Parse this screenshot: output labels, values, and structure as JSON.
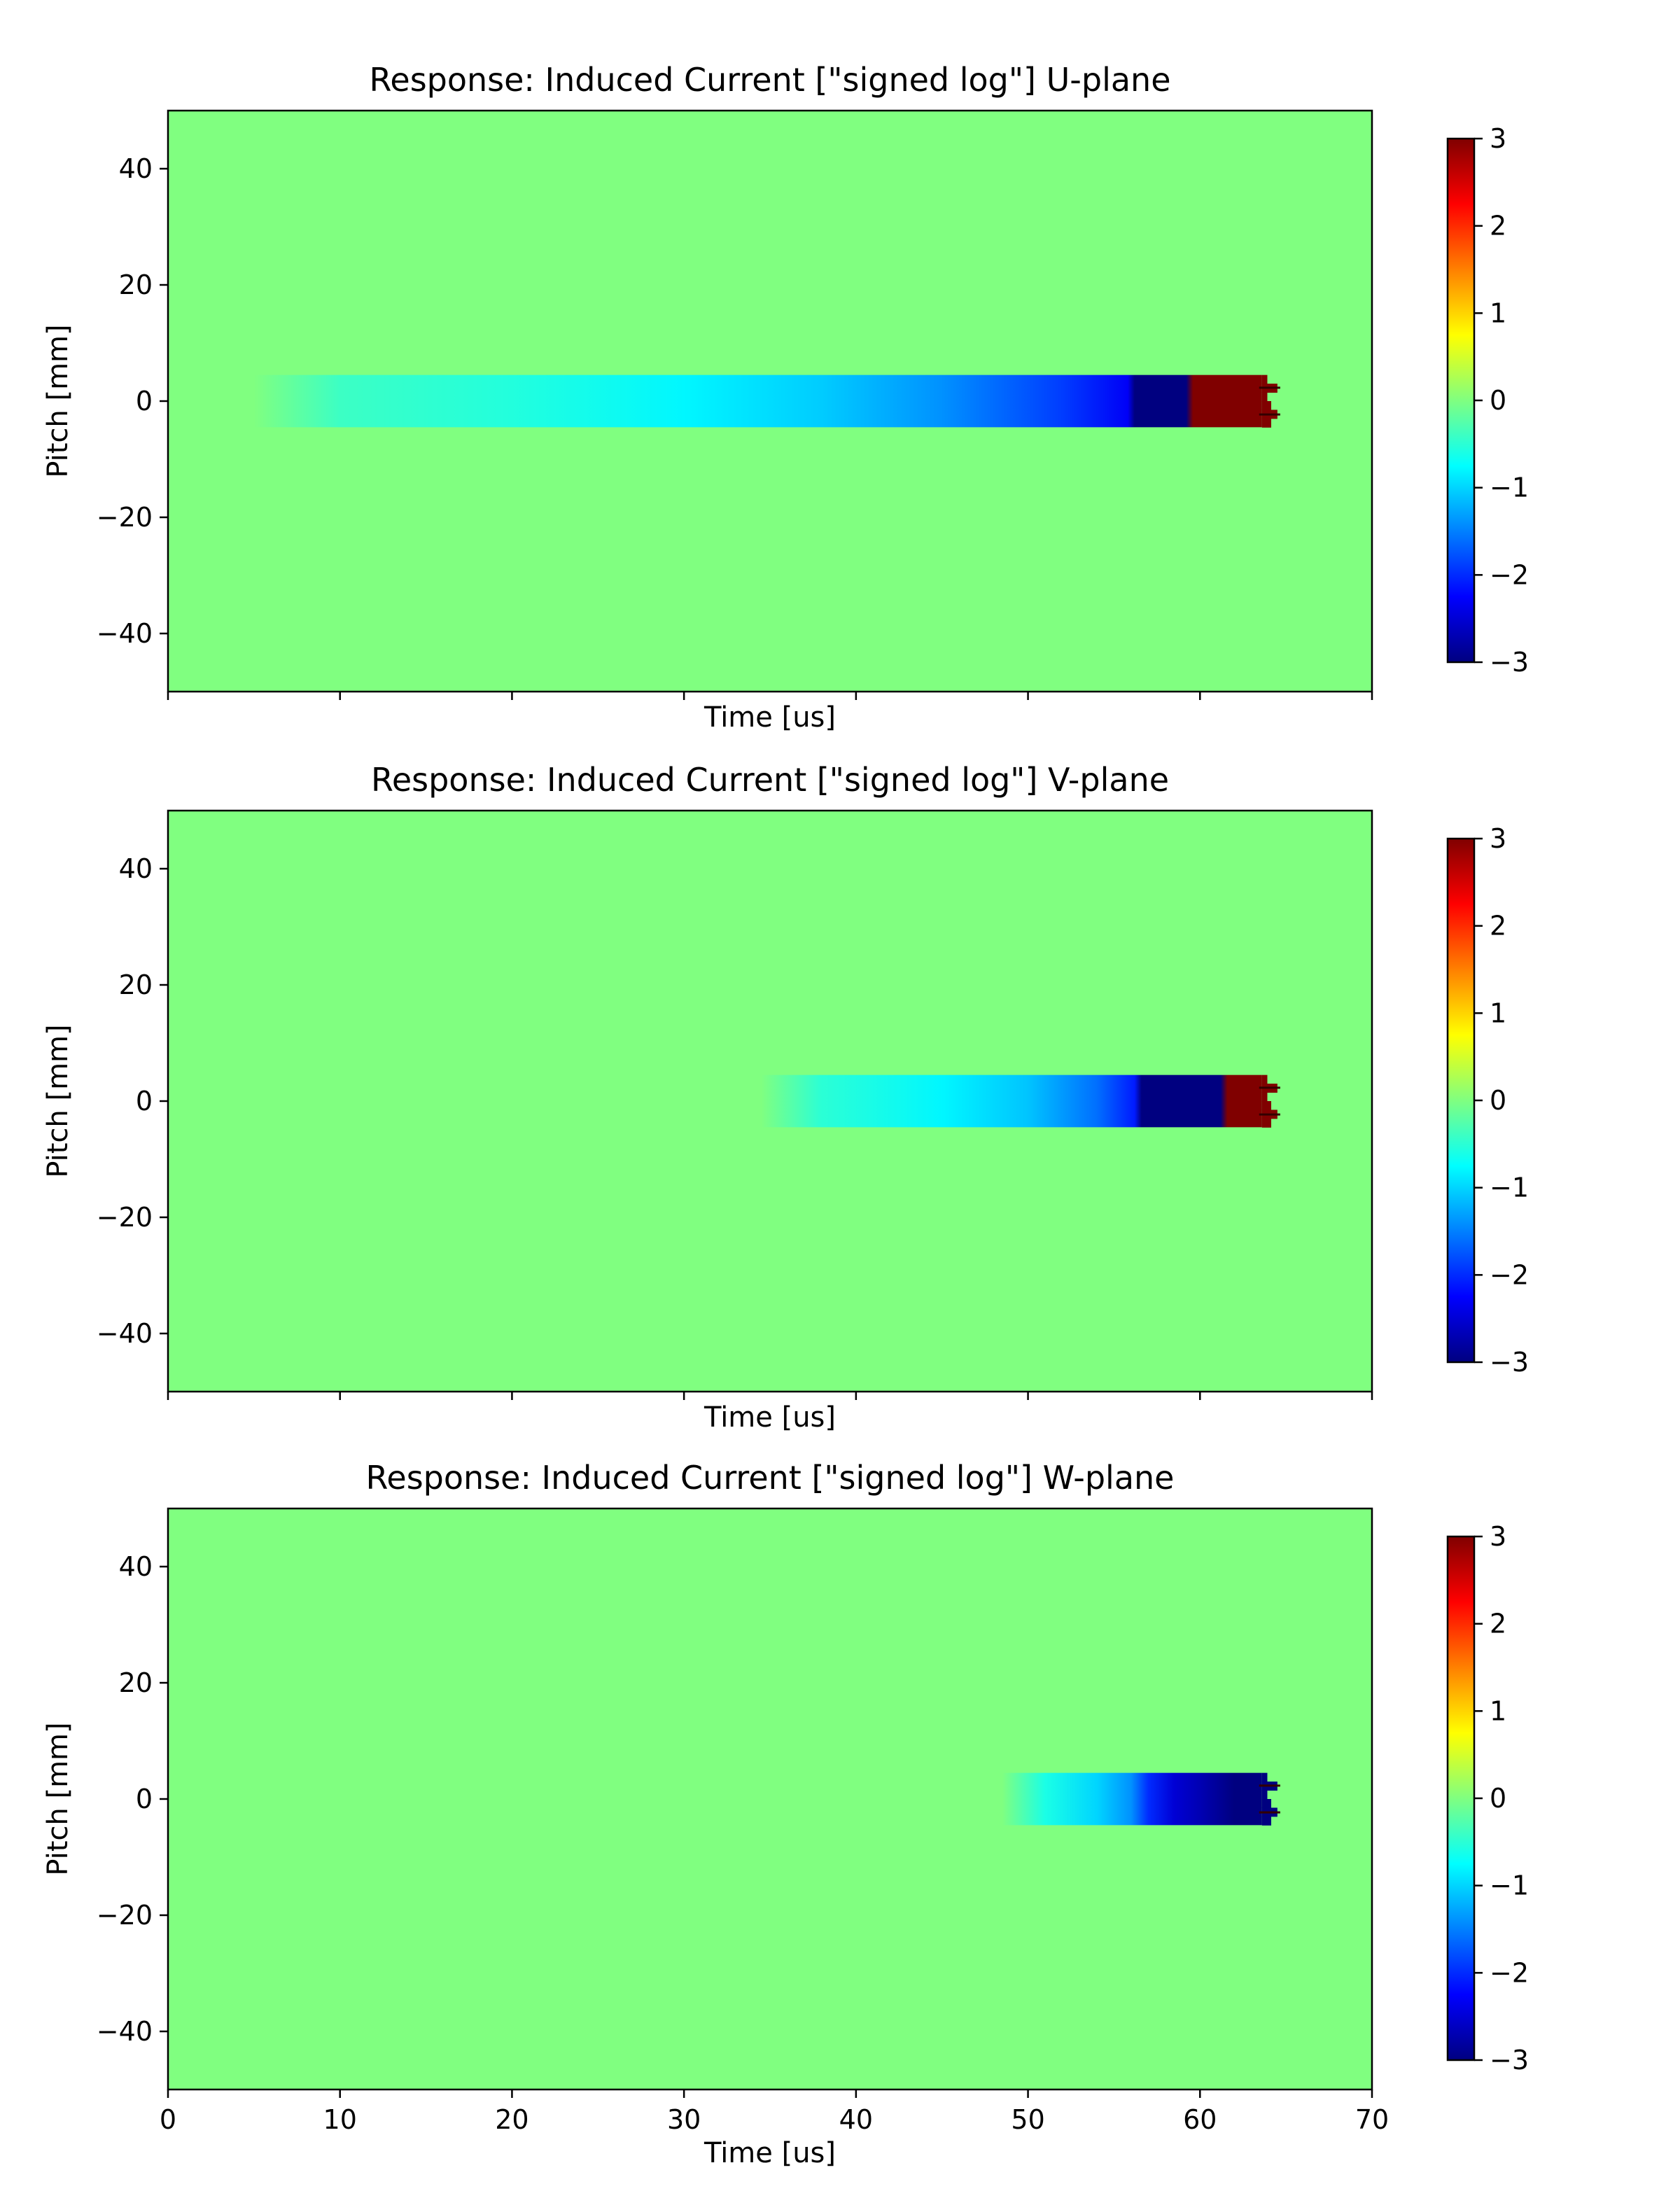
{
  "colors": {
    "background_zero": "#80ff80",
    "colormap": "jet",
    "colormap_stops": [
      "#000080",
      "#0000ff",
      "#0080ff",
      "#00ffff",
      "#80ff80",
      "#ffff00",
      "#ff8000",
      "#ff0000",
      "#800000"
    ]
  },
  "chart_data": [
    {
      "type": "heatmap",
      "title": "Response: Induced Current [\"signed log\"] U-plane",
      "xlabel": "Time [us]",
      "ylabel": "Pitch [mm]",
      "xlim": [
        0,
        70
      ],
      "ylim": [
        -50,
        50
      ],
      "x_ticks": [
        0,
        10,
        20,
        30,
        40,
        50,
        60,
        70
      ],
      "x_tick_labels_shown": false,
      "y_ticks": [
        -40,
        -20,
        0,
        20,
        40
      ],
      "y_tick_labels": [
        "−40",
        "−20",
        "0",
        "20",
        "40"
      ],
      "colorbar": {
        "range": [
          -3,
          3
        ],
        "ticks": [
          -3,
          -2,
          -1,
          0,
          1,
          2,
          3
        ],
        "tick_labels": [
          "−3",
          "−2",
          "−1",
          "0",
          "1",
          "2",
          "3"
        ]
      },
      "band": {
        "pitch_range": [
          -4.5,
          4.5
        ],
        "signal_start_time": 5,
        "deep_negative_start": 56,
        "positive_start": 59.5,
        "end_time": 64.5
      },
      "profile": [
        {
          "t": 5,
          "v": 0
        },
        {
          "t": 10,
          "v": -0.4
        },
        {
          "t": 20,
          "v": -0.55
        },
        {
          "t": 30,
          "v": -0.8
        },
        {
          "t": 38,
          "v": -1.05
        },
        {
          "t": 45,
          "v": -1.4
        },
        {
          "t": 52,
          "v": -1.9
        },
        {
          "t": 55.8,
          "v": -2.3
        },
        {
          "t": 56.2,
          "v": -3
        },
        {
          "t": 59.2,
          "v": -3
        },
        {
          "t": 59.6,
          "v": 3
        },
        {
          "t": 63.6,
          "v": 3
        }
      ]
    },
    {
      "type": "heatmap",
      "title": "Response: Induced Current [\"signed log\"] V-plane",
      "xlabel": "Time [us]",
      "ylabel": "Pitch [mm]",
      "xlim": [
        0,
        70
      ],
      "ylim": [
        -50,
        50
      ],
      "x_ticks": [
        0,
        10,
        20,
        30,
        40,
        50,
        60,
        70
      ],
      "x_tick_labels_shown": false,
      "y_ticks": [
        -40,
        -20,
        0,
        20,
        40
      ],
      "y_tick_labels": [
        "−40",
        "−20",
        "0",
        "20",
        "40"
      ],
      "colorbar": {
        "range": [
          -3,
          3
        ],
        "ticks": [
          -3,
          -2,
          -1,
          0,
          1,
          2,
          3
        ],
        "tick_labels": [
          "−3",
          "−2",
          "−1",
          "0",
          "1",
          "2",
          "3"
        ]
      },
      "band": {
        "pitch_range": [
          -4.5,
          4.5
        ],
        "signal_start_time": 34.5,
        "deep_negative_start": 56.5,
        "positive_start": 61.5,
        "end_time": 64.5
      },
      "profile": [
        {
          "t": 34.5,
          "v": 0
        },
        {
          "t": 38,
          "v": -0.5
        },
        {
          "t": 45,
          "v": -0.8
        },
        {
          "t": 50,
          "v": -1.1
        },
        {
          "t": 54,
          "v": -1.6
        },
        {
          "t": 56.2,
          "v": -2.1
        },
        {
          "t": 56.6,
          "v": -3
        },
        {
          "t": 61.2,
          "v": -3
        },
        {
          "t": 61.6,
          "v": 3
        },
        {
          "t": 63.6,
          "v": 3
        }
      ]
    },
    {
      "type": "heatmap",
      "title": "Response: Induced Current [\"signed log\"] W-plane",
      "xlabel": "Time [us]",
      "ylabel": "Pitch [mm]",
      "xlim": [
        0,
        70
      ],
      "ylim": [
        -50,
        50
      ],
      "x_ticks": [
        0,
        10,
        20,
        30,
        40,
        50,
        60,
        70
      ],
      "x_tick_labels": [
        "0",
        "10",
        "20",
        "30",
        "40",
        "50",
        "60",
        "70"
      ],
      "x_tick_labels_shown": true,
      "y_ticks": [
        -40,
        -20,
        0,
        20,
        40
      ],
      "y_tick_labels": [
        "−40",
        "−20",
        "0",
        "20",
        "40"
      ],
      "colorbar": {
        "range": [
          -3,
          3
        ],
        "ticks": [
          -3,
          -2,
          -1,
          0,
          1,
          2,
          3
        ],
        "tick_labels": [
          "−3",
          "−2",
          "−1",
          "0",
          "1",
          "2",
          "3"
        ]
      },
      "band": {
        "pitch_range": [
          -4.5,
          4.5
        ],
        "signal_start_time": 48.5,
        "deep_negative_start": 58,
        "positive_start": 63.2,
        "end_time": 64.5
      },
      "profile": [
        {
          "t": 48.5,
          "v": 0
        },
        {
          "t": 51,
          "v": -0.6
        },
        {
          "t": 54,
          "v": -1.0
        },
        {
          "t": 56,
          "v": -1.4
        },
        {
          "t": 57,
          "v": -2.0
        },
        {
          "t": 58.5,
          "v": -2.5
        },
        {
          "t": 60,
          "v": -2.7
        },
        {
          "t": 62,
          "v": -3
        },
        {
          "t": 63.6,
          "v": -3
        }
      ]
    }
  ]
}
